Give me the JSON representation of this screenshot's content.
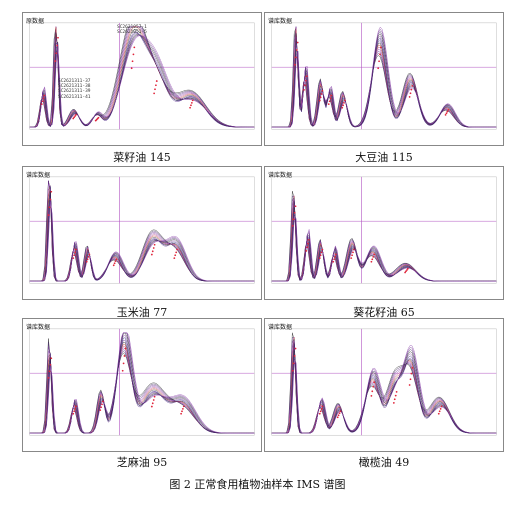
{
  "figure_caption": "图 2  正常食用植物油样本 IMS 谱图",
  "panels": [
    {
      "id": "rapeseed",
      "label": "菜籽油 145",
      "title": "原数据",
      "legend_top": [
        "SC2621057-1",
        "SC2621051-5"
      ],
      "legend_mid": [
        "SC2621311-37",
        "SC2621311-38",
        "SC2621311-39",
        "SC2621311-41"
      ]
    },
    {
      "id": "soybean",
      "label": "大豆油 115",
      "title": "谱库数据"
    },
    {
      "id": "corn",
      "label": "玉米油 77",
      "title": "谱库数据"
    },
    {
      "id": "sunflower",
      "label": "葵花籽油 65",
      "title": "谱库数据"
    },
    {
      "id": "sesame",
      "label": "芝麻油 95",
      "title": "谱库数据"
    },
    {
      "id": "olive",
      "label": "橄榄油 49",
      "title": "谱库数据"
    }
  ]
}
